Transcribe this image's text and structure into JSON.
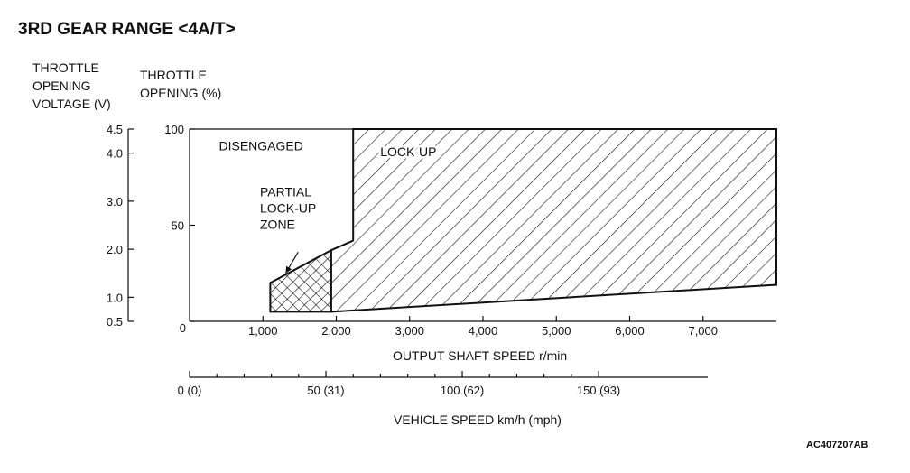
{
  "chart_data": {
    "type": "area",
    "title": "3RD GEAR RANGE <4A/T>",
    "left_axis_label": [
      "THROTTLE",
      "OPENING",
      "VOLTAGE (V)"
    ],
    "y_axis_label": [
      "THROTTLE",
      "OPENING (%)"
    ],
    "xlabel": "OUTPUT SHAFT SPEED r/min",
    "secondary_xlabel": "VEHICLE SPEED km/h (mph)",
    "figure_code": "AC407207AB",
    "xlim": [
      0,
      8000
    ],
    "ylim": [
      0,
      100
    ],
    "x_ticks": [
      {
        "value": 0,
        "label": "0"
      },
      {
        "value": 1000,
        "label": "1,000"
      },
      {
        "value": 2000,
        "label": "2,000"
      },
      {
        "value": 3000,
        "label": "3,000"
      },
      {
        "value": 4000,
        "label": "4,000"
      },
      {
        "value": 5000,
        "label": "5,000"
      },
      {
        "value": 6000,
        "label": "6,000"
      },
      {
        "value": 7000,
        "label": "7,000"
      }
    ],
    "y_ticks": [
      {
        "value": 0,
        "label": "0"
      },
      {
        "value": 50,
        "label": "50"
      },
      {
        "value": 100,
        "label": "100"
      }
    ],
    "voltage_ticks": [
      {
        "value": 0,
        "label": "0.5"
      },
      {
        "value": 12.5,
        "label": "1.0"
      },
      {
        "value": 37.5,
        "label": "2.0"
      },
      {
        "value": 62.5,
        "label": "3.0"
      },
      {
        "value": 87.5,
        "label": "4.0"
      },
      {
        "value": 100,
        "label": "4.5"
      }
    ],
    "speed_ticks": [
      {
        "value": 0,
        "label": "0 (0)"
      },
      {
        "value": 50,
        "label": "50 (31)"
      },
      {
        "value": 100,
        "label": "100 (62)"
      },
      {
        "value": 150,
        "label": "150 (93)"
      }
    ],
    "speed_per_rpm": 0.0269,
    "regions": [
      {
        "name": "DISENGAGED",
        "label_lines": [
          "DISENGAGED"
        ],
        "label_at": [
          400,
          89
        ],
        "pattern": "none",
        "points": []
      },
      {
        "name": "PARTIAL LOCK-UP ZONE",
        "label_lines": [
          "PARTIAL",
          "LOCK-UP",
          "ZONE"
        ],
        "label_at": [
          960,
          65
        ],
        "pattern": "crosshatch",
        "points": [
          [
            1100,
            5
          ],
          [
            1100,
            20
          ],
          [
            1930,
            37
          ],
          [
            1930,
            5
          ]
        ]
      },
      {
        "name": "LOCK-UP",
        "label_lines": [
          "LOCK-UP"
        ],
        "label_at": [
          2600,
          86
        ],
        "pattern": "hatch",
        "points": [
          [
            1930,
            5
          ],
          [
            1930,
            37
          ],
          [
            2230,
            42
          ],
          [
            2230,
            100
          ],
          [
            8000,
            100
          ],
          [
            8000,
            19
          ]
        ]
      }
    ]
  }
}
